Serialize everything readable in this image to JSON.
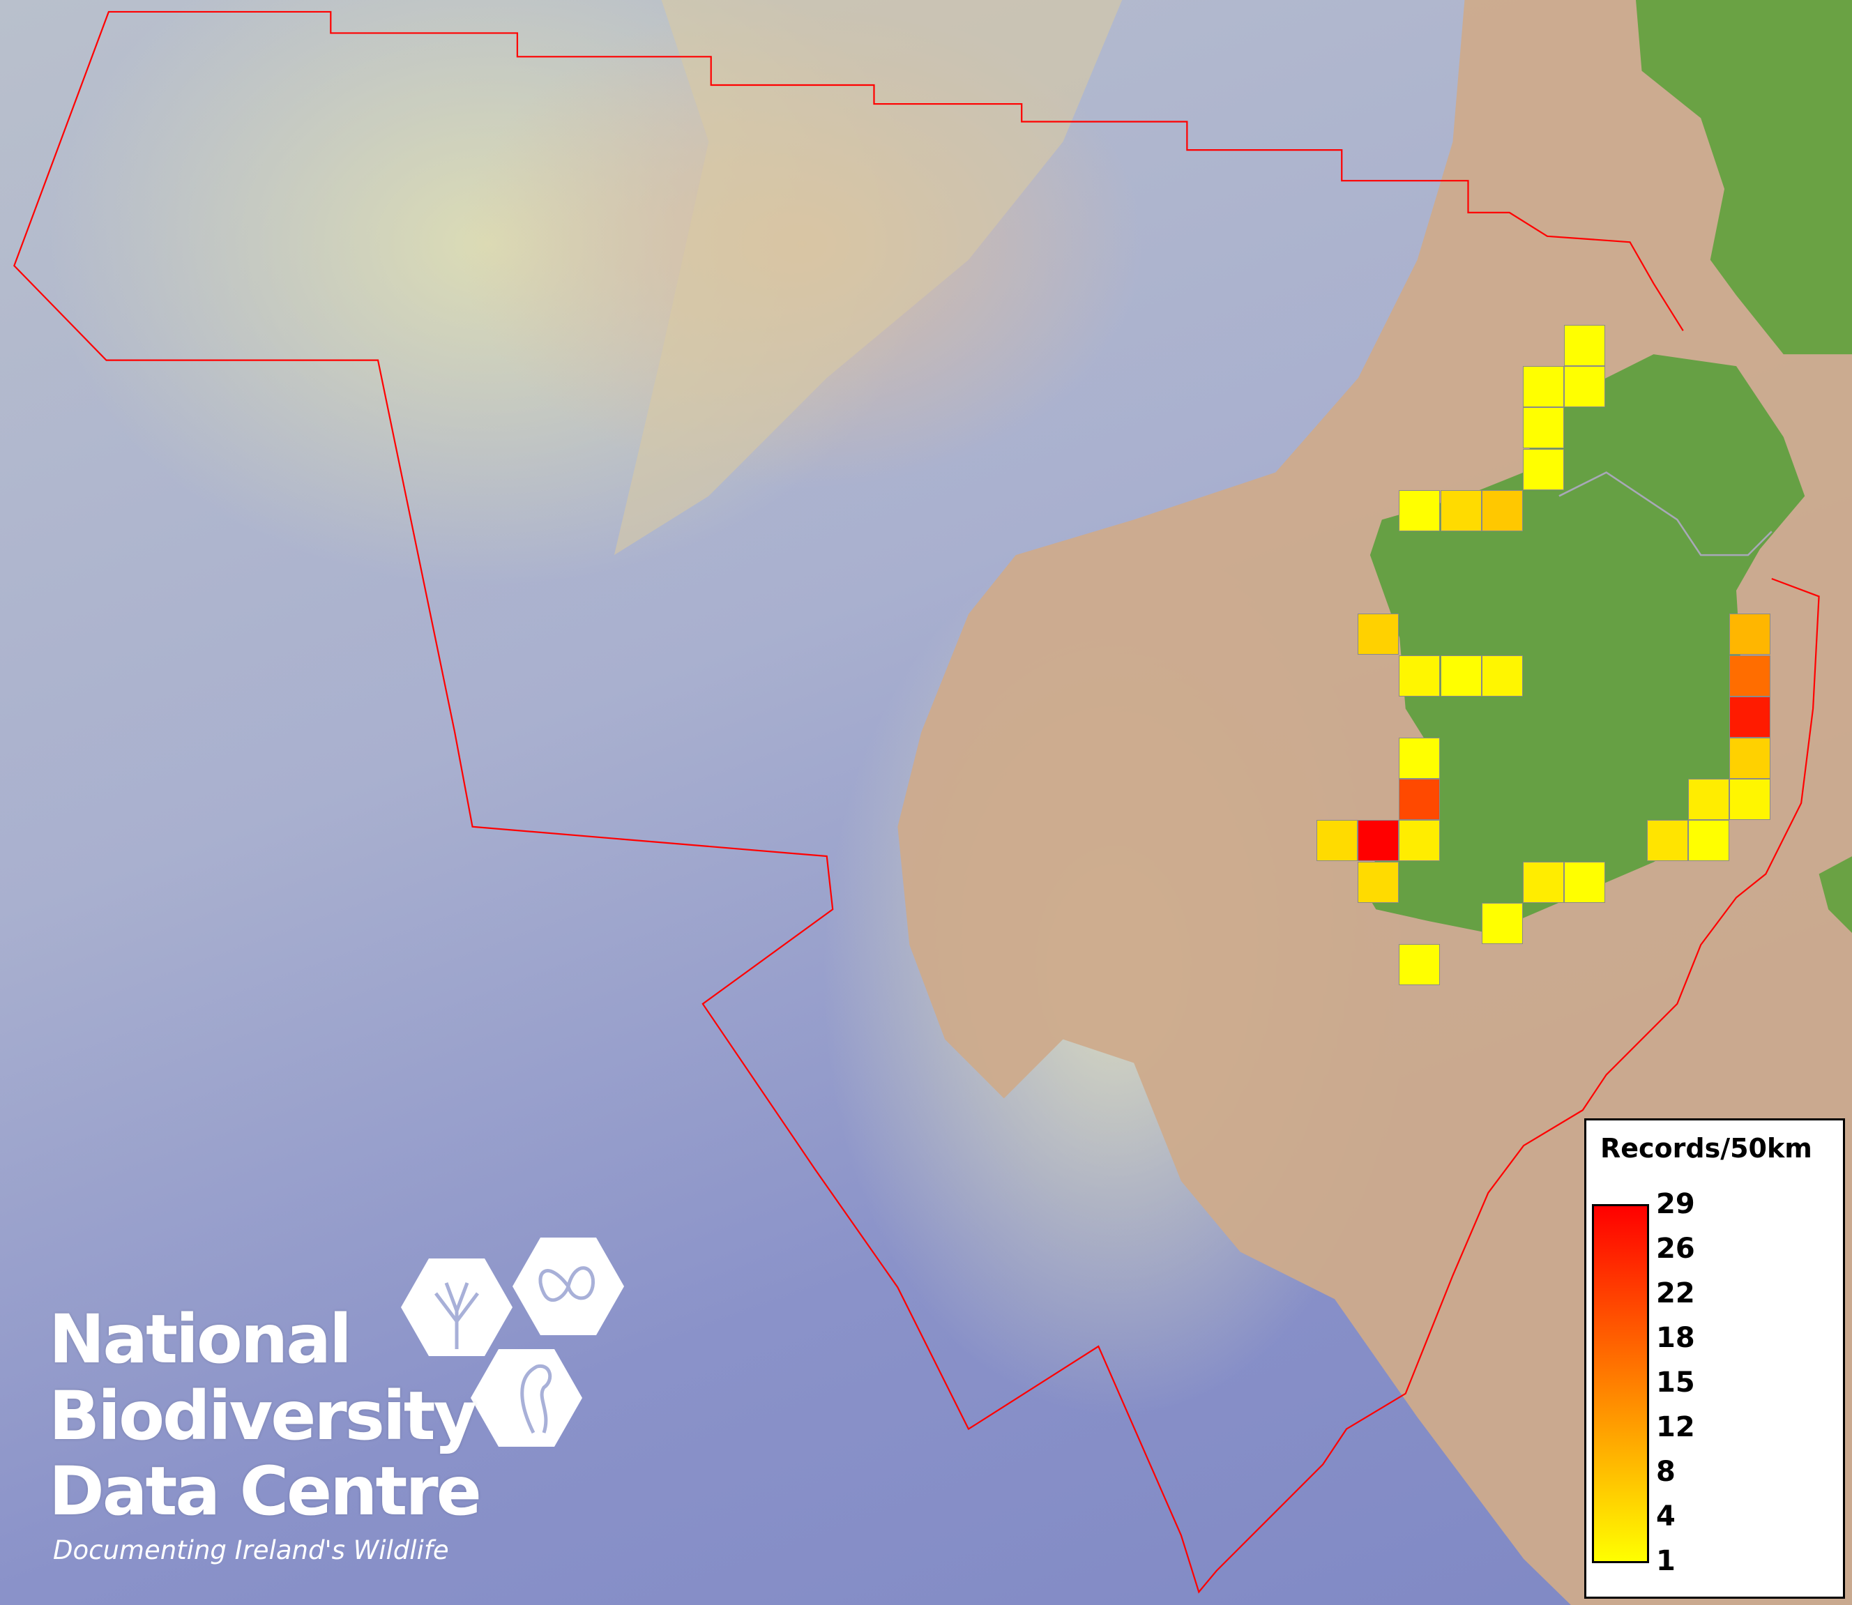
{
  "map": {
    "colors": {
      "sea_deep": "#8a92c9",
      "shelf": "#dedcb4",
      "land_offshore": "#cdab8c",
      "land": "#66a044",
      "boundary": "#ff0000",
      "river": "#a8a8b8"
    }
  },
  "logo": {
    "line1": "National",
    "line2": "Biodiversity",
    "line3": "Data Centre",
    "tagline": "Documenting Ireland's Wildlife"
  },
  "chart_data": {
    "type": "heatmap",
    "title": "Records/50km",
    "range": [
      1,
      29
    ],
    "colorscale": [
      "#ffff00",
      "#ff0000"
    ],
    "colorbar_ticks": [
      "29",
      "26",
      "22",
      "18",
      "15",
      "12",
      "8",
      "4",
      "1"
    ],
    "cell_records": [
      1,
      1,
      1,
      1,
      1,
      1,
      5,
      7,
      6,
      2,
      1,
      2,
      9,
      17,
      26,
      6,
      3,
      2,
      1,
      21,
      5,
      29,
      3,
      4,
      1,
      5,
      3,
      1,
      1,
      1
    ]
  }
}
